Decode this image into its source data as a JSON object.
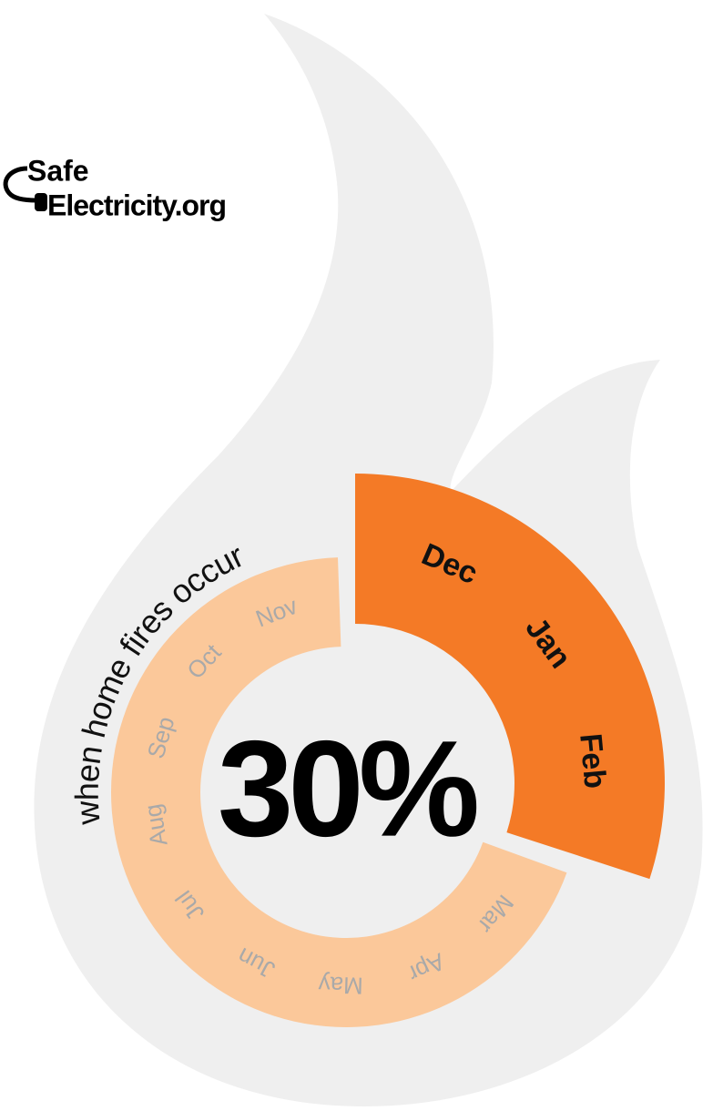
{
  "logo": {
    "line1": "Safe",
    "line2": "Electricity.org"
  },
  "chart_data": {
    "type": "donut",
    "title": "when home fires occur",
    "segments": [
      {
        "labels": [
          "Dec",
          "Jan",
          "Feb"
        ],
        "value": 30,
        "value_label": "30%",
        "color": "#f47a26"
      },
      {
        "labels": [
          "Mar",
          "Apr",
          "May",
          "Jun",
          "Jul",
          "Aug",
          "Sep",
          "Oct",
          "Nov"
        ],
        "value": 70,
        "color": "#fbc89a"
      }
    ]
  }
}
